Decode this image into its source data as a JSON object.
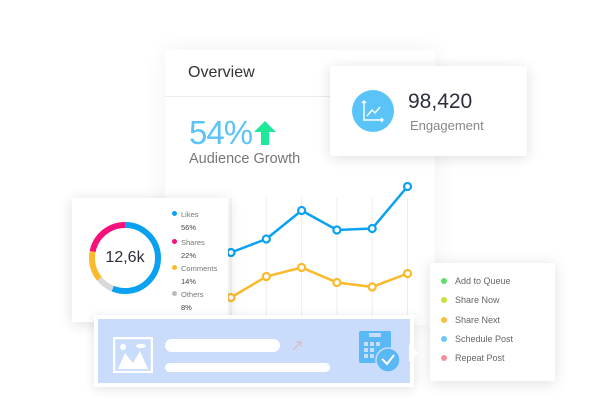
{
  "overview": {
    "title": "Overview",
    "growth_value": "54%",
    "growth_label": "Audience Growth",
    "growth_icon": "arrow-up-icon",
    "growth_color": "#5ac4f8",
    "arrow_color": "#1ee89a"
  },
  "engagement": {
    "value": "98,420",
    "label": "Engagement",
    "icon": "trend-chart-icon"
  },
  "donut": {
    "total": "12,6k",
    "items": [
      {
        "label": "Likes",
        "percent": "56%",
        "value": 56,
        "color": "#0aa1f0"
      },
      {
        "label": "Shares",
        "percent": "22%",
        "value": 22,
        "color": "#f7107a"
      },
      {
        "label": "Comments",
        "percent": "14%",
        "value": 14,
        "color": "#fbb92c"
      },
      {
        "label": "Others",
        "percent": "8%",
        "value": 8,
        "color": "#d9d9d9"
      }
    ]
  },
  "chart_data": {
    "type": "line",
    "x": [
      1,
      2,
      3,
      4,
      5,
      6
    ],
    "series": [
      {
        "values": [
          45,
          54,
          73,
          60,
          61,
          89
        ],
        "color": "#0aa1f0"
      },
      {
        "values": [
          15,
          29,
          35,
          25,
          22,
          31
        ],
        "color": "#fbb92c"
      }
    ],
    "ylim": [
      0,
      100
    ],
    "grid": "vertical"
  },
  "menu": {
    "items": [
      {
        "label": "Add to Queue",
        "color": "#5ee06a"
      },
      {
        "label": "Share Now",
        "color": "#c6e33c"
      },
      {
        "label": "Share Next",
        "color": "#fbbd3c"
      },
      {
        "label": "Schedule Post",
        "color": "#6ec8fb"
      },
      {
        "label": "Repeat Post",
        "color": "#fb8f99"
      }
    ]
  },
  "post": {
    "image_icon": "image-icon",
    "schedule_icon": "calendar-clock-icon"
  }
}
